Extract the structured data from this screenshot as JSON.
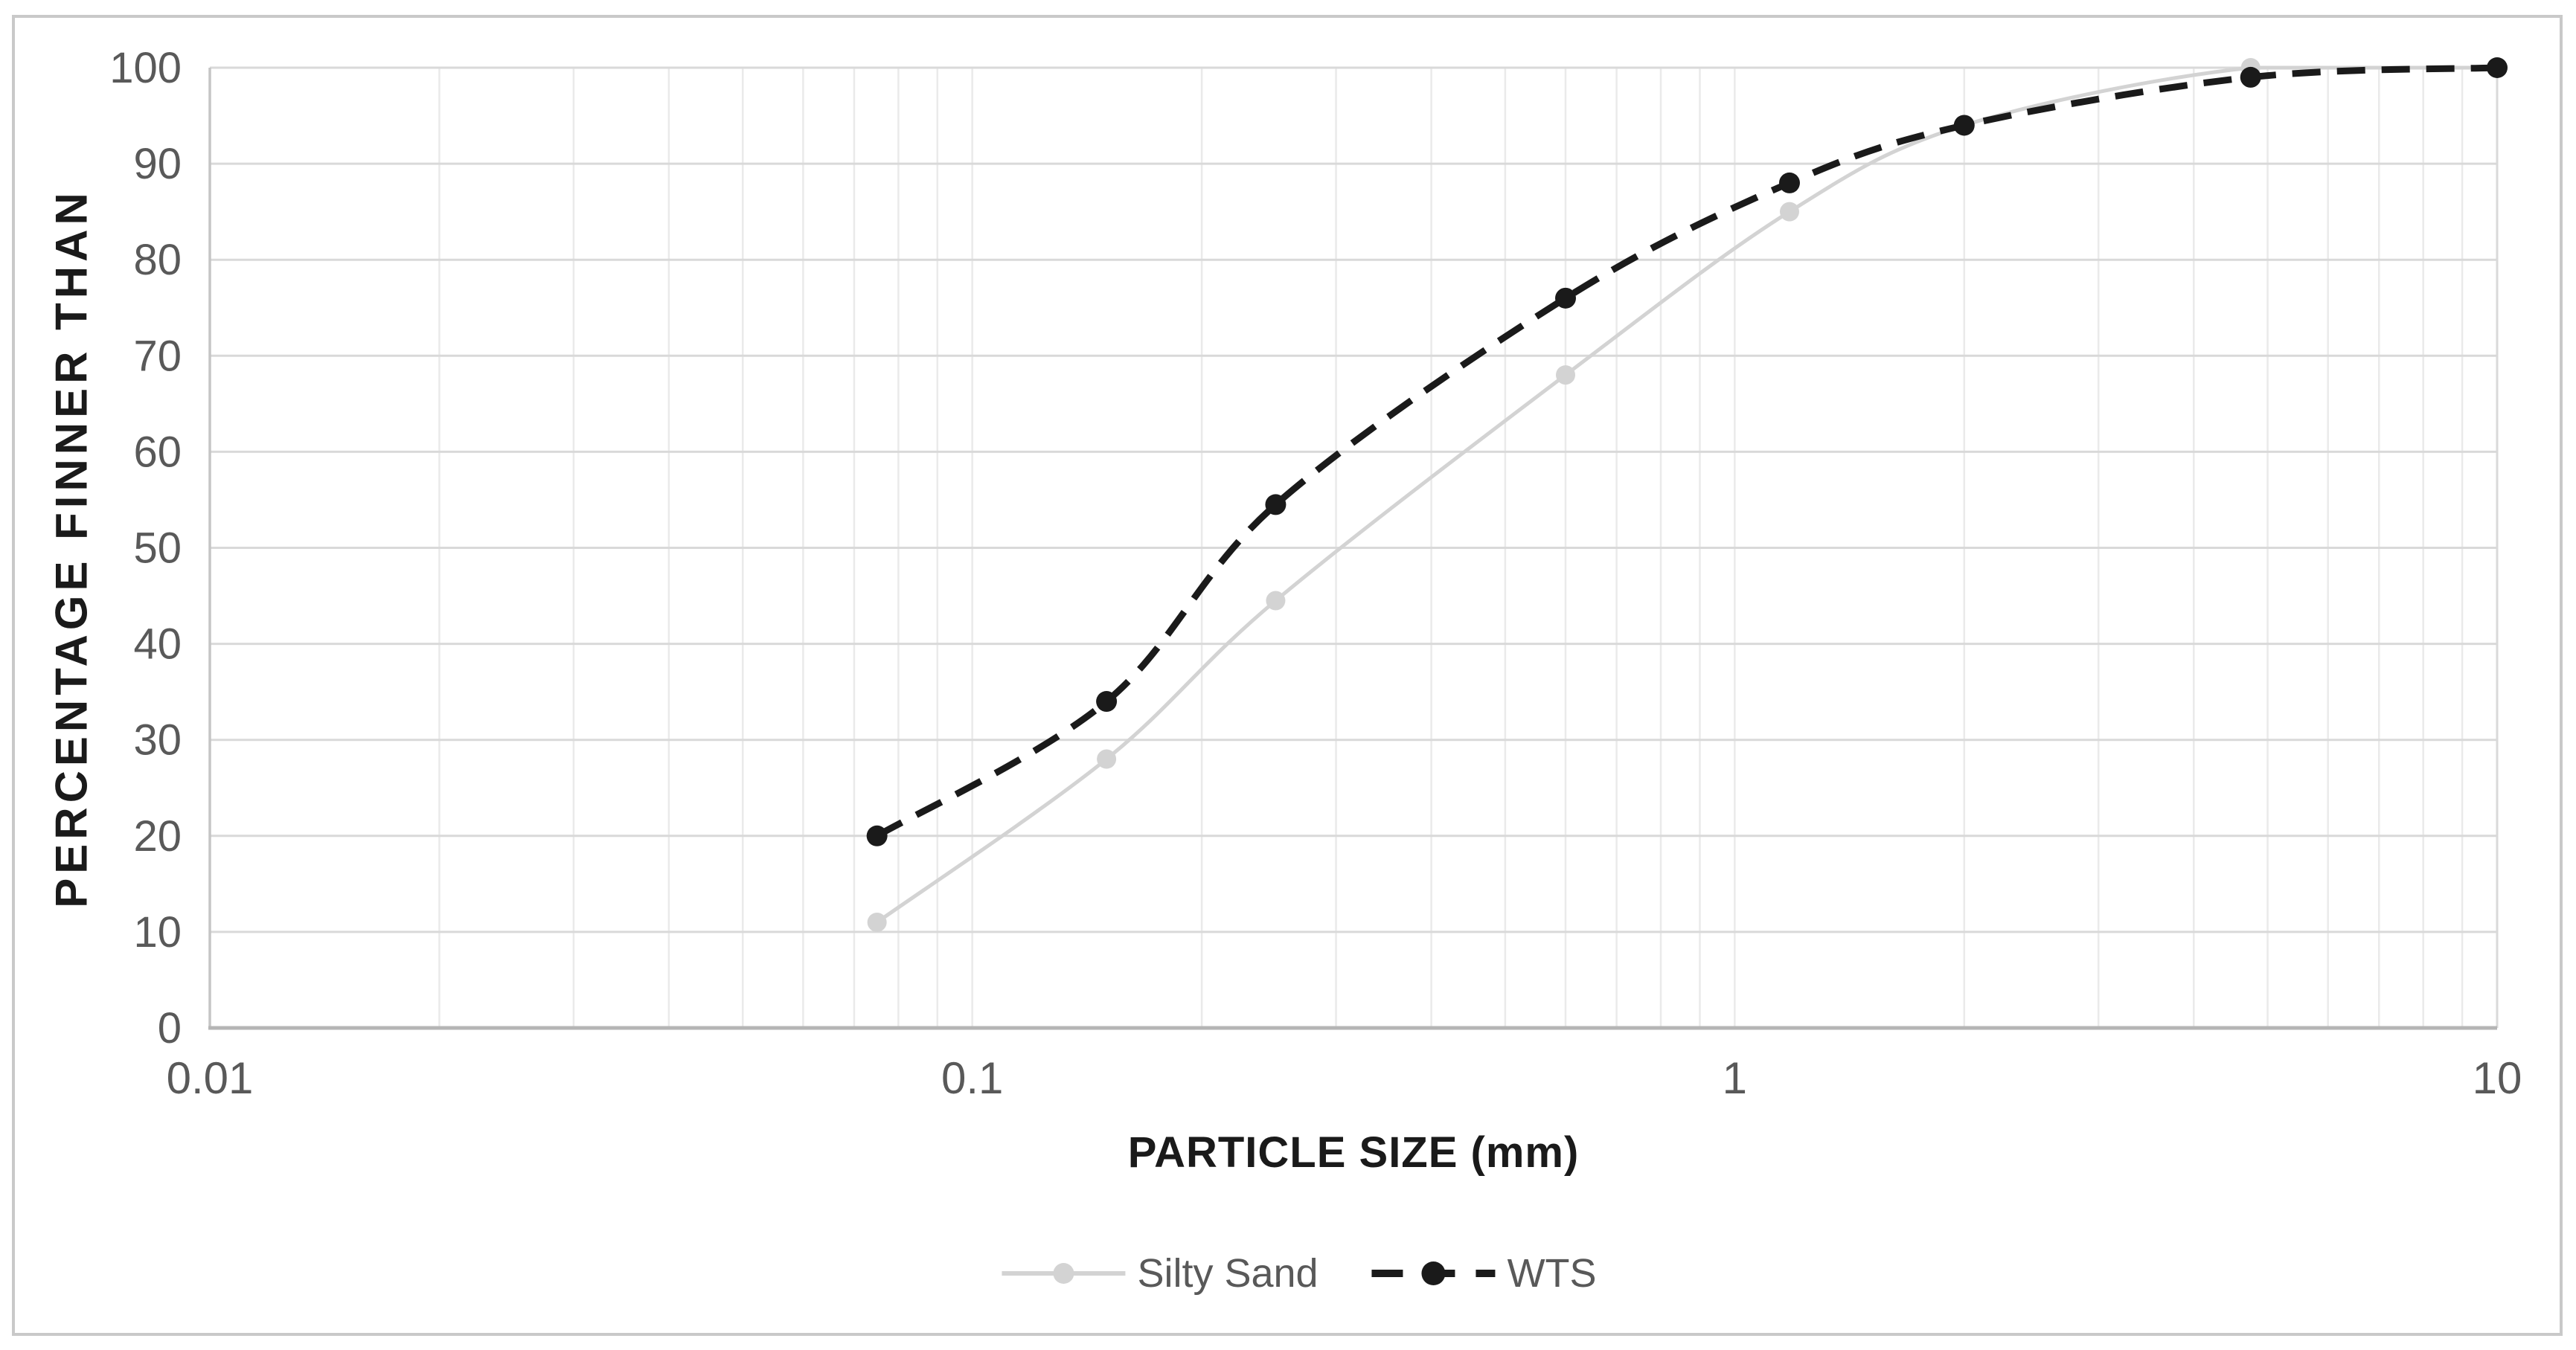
{
  "chart_data": {
    "type": "line",
    "title": "",
    "xlabel": "PARTICLE SIZE (mm)",
    "ylabel": "PERCENTAGE FINNER THAN",
    "x_scale": "log",
    "xlim": [
      0.01,
      10
    ],
    "ylim": [
      0,
      100
    ],
    "x_ticks": [
      0.01,
      0.1,
      1,
      10
    ],
    "x_tick_labels": [
      "0.01",
      "0.1",
      "1",
      "10"
    ],
    "y_ticks": [
      0,
      10,
      20,
      30,
      40,
      50,
      60,
      70,
      80,
      90,
      100
    ],
    "grid": {
      "horizontal_major": true,
      "vertical_log_minor": true
    },
    "legend_position": "bottom-center",
    "series": [
      {
        "name": "Silty Sand",
        "color": "#d3d3d3",
        "line_style": "solid",
        "marker": "circle",
        "points": [
          [
            0.075,
            11
          ],
          [
            0.15,
            28
          ],
          [
            0.25,
            44.5
          ],
          [
            0.6,
            68
          ],
          [
            1.18,
            85
          ],
          [
            2,
            94
          ],
          [
            4.75,
            100
          ],
          [
            10,
            100
          ]
        ]
      },
      {
        "name": "WTS",
        "color": "#1a1a1a",
        "line_style": "dashed",
        "marker": "circle",
        "points": [
          [
            0.075,
            20
          ],
          [
            0.15,
            34
          ],
          [
            0.25,
            54.5
          ],
          [
            0.6,
            76
          ],
          [
            1.18,
            88
          ],
          [
            2,
            94
          ],
          [
            4.75,
            99
          ],
          [
            10,
            100
          ]
        ]
      }
    ]
  },
  "colors": {
    "background": "#ffffff",
    "chart_border": "#c9c9c9",
    "grid_major_horizontal": "#d9d9d9",
    "grid_minor_vertical": "#eaeaea",
    "axis_line_left": "#c5c5c5",
    "axis_line_bottom": "#b5b5b5",
    "tick_label": "#595959",
    "axis_title": "#1a1a1a",
    "legend_text": "#595959"
  }
}
